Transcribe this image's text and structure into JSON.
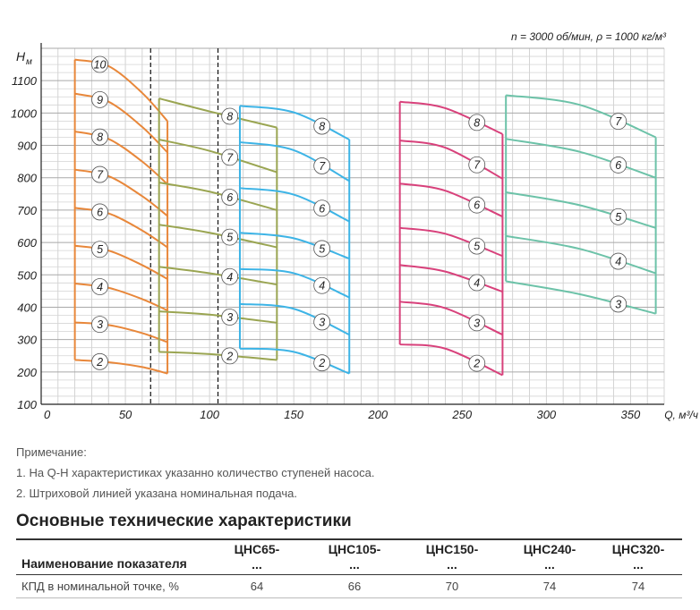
{
  "chart_data": {
    "type": "line",
    "title": "n = 3000 об/мин, ρ = 1000 кг/м³",
    "ylabel": "Н",
    "ylabel_sub": "м",
    "xlabel": "Q, м³/ч",
    "xlim": [
      0,
      370
    ],
    "ylim": [
      100,
      1200
    ],
    "x_ticks": [
      "0",
      "50",
      "100",
      "150",
      "200",
      "250",
      "300",
      "350"
    ],
    "x_tick_values": [
      0,
      50,
      100,
      150,
      200,
      250,
      300,
      350
    ],
    "y_ticks": [
      "100",
      "200",
      "300",
      "400",
      "500",
      "600",
      "700",
      "800",
      "900",
      "1000",
      "1100"
    ],
    "y_tick_values": [
      100,
      200,
      300,
      400,
      500,
      600,
      700,
      800,
      900,
      1000,
      1100
    ],
    "grid": true,
    "nominal_flows": [
      65,
      105
    ],
    "families": [
      {
        "color": "#e8873a",
        "q_range": [
          20,
          75
        ],
        "curves": [
          {
            "stages": "2",
            "points": [
              [
                20,
                237
              ],
              [
                40,
                230
              ],
              [
                60,
                215
              ],
              [
                75,
                195
              ]
            ]
          },
          {
            "stages": "3",
            "points": [
              [
                20,
                353
              ],
              [
                40,
                345
              ],
              [
                60,
                320
              ],
              [
                75,
                292
              ]
            ]
          },
          {
            "stages": "4",
            "points": [
              [
                20,
                473
              ],
              [
                40,
                460
              ],
              [
                60,
                425
              ],
              [
                75,
                390
              ]
            ]
          },
          {
            "stages": "5",
            "points": [
              [
                20,
                590
              ],
              [
                40,
                575
              ],
              [
                60,
                530
              ],
              [
                75,
                487
              ]
            ]
          },
          {
            "stages": "6",
            "points": [
              [
                20,
                707
              ],
              [
                40,
                690
              ],
              [
                60,
                637
              ],
              [
                75,
                585
              ]
            ]
          },
          {
            "stages": "7",
            "points": [
              [
                20,
                825
              ],
              [
                40,
                805
              ],
              [
                60,
                743
              ],
              [
                75,
                682
              ]
            ]
          },
          {
            "stages": "8",
            "points": [
              [
                20,
                943
              ],
              [
                40,
                920
              ],
              [
                60,
                850
              ],
              [
                75,
                780
              ]
            ]
          },
          {
            "stages": "9",
            "points": [
              [
                20,
                1060
              ],
              [
                40,
                1035
              ],
              [
                60,
                957
              ],
              [
                75,
                878
              ]
            ]
          },
          {
            "stages": "10",
            "points": [
              [
                20,
                1165
              ],
              [
                40,
                1145
              ],
              [
                60,
                1062
              ],
              [
                75,
                975
              ]
            ]
          }
        ]
      },
      {
        "color": "#9aa552",
        "q_range": [
          70,
          140
        ],
        "curves": [
          {
            "stages": "2",
            "points": [
              [
                70,
                262
              ],
              [
                100,
                255
              ],
              [
                140,
                237
              ]
            ]
          },
          {
            "stages": "3",
            "points": [
              [
                70,
                387
              ],
              [
                100,
                377
              ],
              [
                140,
                352
              ]
            ]
          },
          {
            "stages": "4",
            "points": [
              [
                70,
                525
              ],
              [
                100,
                505
              ],
              [
                140,
                470
              ]
            ]
          },
          {
            "stages": "5",
            "points": [
              [
                70,
                655
              ],
              [
                100,
                630
              ],
              [
                140,
                585
              ]
            ]
          },
          {
            "stages": "6",
            "points": [
              [
                70,
                785
              ],
              [
                100,
                757
              ],
              [
                140,
                700
              ]
            ]
          },
          {
            "stages": "7",
            "points": [
              [
                70,
                918
              ],
              [
                100,
                883
              ],
              [
                140,
                817
              ]
            ]
          },
          {
            "stages": "8",
            "points": [
              [
                70,
                1045
              ],
              [
                100,
                1005
              ],
              [
                140,
                955
              ]
            ]
          }
        ]
      },
      {
        "color": "#3db4e6",
        "q_range": [
          118,
          183
        ],
        "curves": [
          {
            "stages": "2",
            "points": [
              [
                118,
                272
              ],
              [
                150,
                262
              ],
              [
                183,
                195
              ]
            ]
          },
          {
            "stages": "3",
            "points": [
              [
                118,
                410
              ],
              [
                150,
                395
              ],
              [
                183,
                315
              ]
            ]
          },
          {
            "stages": "4",
            "points": [
              [
                118,
                518
              ],
              [
                150,
                505
              ],
              [
                183,
                430
              ]
            ]
          },
          {
            "stages": "5",
            "points": [
              [
                118,
                630
              ],
              [
                150,
                613
              ],
              [
                183,
                550
              ]
            ]
          },
          {
            "stages": "6",
            "points": [
              [
                118,
                768
              ],
              [
                150,
                748
              ],
              [
                183,
                665
              ]
            ]
          },
          {
            "stages": "7",
            "points": [
              [
                118,
                910
              ],
              [
                150,
                885
              ],
              [
                183,
                790
              ]
            ]
          },
          {
            "stages": "8",
            "points": [
              [
                118,
                1022
              ],
              [
                150,
                1002
              ],
              [
                183,
                918
              ]
            ]
          }
        ]
      },
      {
        "color": "#d8417b",
        "q_range": [
          213,
          274
        ],
        "curves": [
          {
            "stages": "2",
            "points": [
              [
                213,
                285
              ],
              [
                240,
                272
              ],
              [
                274,
                190
              ]
            ]
          },
          {
            "stages": "3",
            "points": [
              [
                213,
                417
              ],
              [
                240,
                397
              ],
              [
                274,
                315
              ]
            ]
          },
          {
            "stages": "4",
            "points": [
              [
                213,
                530
              ],
              [
                240,
                510
              ],
              [
                274,
                448
              ]
            ]
          },
          {
            "stages": "5",
            "points": [
              [
                213,
                645
              ],
              [
                240,
                627
              ],
              [
                274,
                558
              ]
            ]
          },
          {
            "stages": "6",
            "points": [
              [
                213,
                782
              ],
              [
                240,
                760
              ],
              [
                274,
                680
              ]
            ]
          },
          {
            "stages": "7",
            "points": [
              [
                213,
                915
              ],
              [
                240,
                893
              ],
              [
                274,
                797
              ]
            ]
          },
          {
            "stages": "8",
            "points": [
              [
                213,
                1035
              ],
              [
                240,
                1015
              ],
              [
                274,
                935
              ]
            ]
          }
        ]
      },
      {
        "color": "#6cc2a8",
        "q_range": [
          276,
          365
        ],
        "curves": [
          {
            "stages": "3",
            "points": [
              [
                276,
                480
              ],
              [
                320,
                440
              ],
              [
                365,
                380
              ]
            ]
          },
          {
            "stages": "4",
            "points": [
              [
                276,
                620
              ],
              [
                320,
                580
              ],
              [
                365,
                505
              ]
            ]
          },
          {
            "stages": "5",
            "points": [
              [
                276,
                755
              ],
              [
                320,
                715
              ],
              [
                365,
                645
              ]
            ]
          },
          {
            "stages": "6",
            "points": [
              [
                276,
                920
              ],
              [
                320,
                880
              ],
              [
                365,
                800
              ]
            ]
          },
          {
            "stages": "7",
            "points": [
              [
                276,
                1055
              ],
              [
                320,
                1025
              ],
              [
                365,
                925
              ]
            ]
          }
        ]
      }
    ]
  },
  "notes": {
    "heading": "Примечание:",
    "line1": "1. На Q-H характеристиках указанно количество ступеней насоса.",
    "line2": "2. Штриховой линией указана номинальная подача."
  },
  "specs": {
    "title": "Основные технические характеристики",
    "header_first": "Наименование показателя",
    "columns": [
      {
        "name": "ЦНС65-",
        "sub": "...",
        "value": "64"
      },
      {
        "name": "ЦНС105-",
        "sub": "...",
        "value": "66"
      },
      {
        "name": "ЦНС150-",
        "sub": "...",
        "value": "70"
      },
      {
        "name": "ЦНС240-",
        "sub": "...",
        "value": "74"
      },
      {
        "name": "ЦНС320-",
        "sub": "...",
        "value": "74"
      }
    ],
    "row_label": "КПД в номинальной точке, %"
  }
}
